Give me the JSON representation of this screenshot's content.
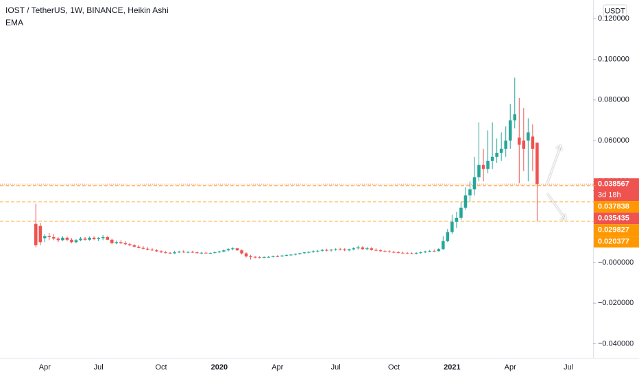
{
  "chart_data": {
    "type": "candlestick",
    "title": "IOST / TetherUS, 1W, BINANCE, Heikin Ashi",
    "indicator": "EMA",
    "currency": "USDT",
    "up_color": "#26a69a",
    "down_color": "#ef5350",
    "categories": [
      null,
      null,
      "Apr",
      null,
      null,
      null,
      null,
      null,
      null,
      null,
      null,
      null,
      null,
      null,
      "Jul",
      null,
      null,
      null,
      null,
      null,
      null,
      null,
      null,
      null,
      null,
      null,
      null,
      null,
      "Oct",
      null,
      null,
      null,
      null,
      null,
      null,
      null,
      null,
      null,
      null,
      null,
      null,
      "2020",
      null,
      null,
      null,
      null,
      null,
      null,
      null,
      null,
      null,
      null,
      null,
      null,
      "Apr",
      null,
      null,
      null,
      null,
      null,
      null,
      null,
      null,
      null,
      null,
      null,
      null,
      "Jul",
      null,
      null,
      null,
      null,
      null,
      null,
      null,
      null,
      null,
      null,
      null,
      null,
      "Oct",
      null,
      null,
      null,
      null,
      null,
      null,
      null,
      null,
      null,
      null,
      null,
      null,
      "2021",
      null,
      null,
      null,
      null,
      null,
      null,
      null,
      null,
      null,
      null,
      null,
      null,
      "Apr",
      null,
      null,
      null,
      null,
      null,
      null,
      null,
      null,
      null,
      null,
      null,
      null,
      "Jul",
      null,
      null,
      null,
      null,
      null
    ],
    "open": [
      0.019,
      0.018,
      0.012,
      0.013,
      0.0125,
      0.0118,
      0.011,
      0.0122,
      0.0112,
      0.01,
      0.011,
      0.0118,
      0.0112,
      0.0122,
      0.0115,
      0.012,
      0.0125,
      0.0112,
      0.0095,
      0.01,
      0.0095,
      0.009,
      0.0085,
      0.0078,
      0.0072,
      0.0068,
      0.0063,
      0.006,
      0.0055,
      0.005,
      0.0048,
      0.0045,
      0.005,
      0.0053,
      0.005,
      0.0052,
      0.005,
      0.0046,
      0.0048,
      0.0045,
      0.0047,
      0.005,
      0.0054,
      0.006,
      0.0066,
      0.007,
      0.006,
      0.0045,
      0.003,
      0.0028,
      0.0026,
      0.0025,
      0.0027,
      0.0028,
      0.0031,
      0.003,
      0.0034,
      0.0037,
      0.0039,
      0.0042,
      0.0046,
      0.005,
      0.0052,
      0.0056,
      0.0058,
      0.0062,
      0.006,
      0.0063,
      0.0066,
      0.0064,
      0.006,
      0.0065,
      0.007,
      0.0074,
      0.0066,
      0.007,
      0.0062,
      0.006,
      0.0056,
      0.0054,
      0.0052,
      0.005,
      0.0048,
      0.0046,
      0.0045,
      0.0044,
      0.0047,
      0.005,
      0.0054,
      0.0057,
      0.0056,
      0.0066,
      0.0105,
      0.015,
      0.02,
      0.022,
      0.027,
      0.033,
      0.036,
      0.042,
      0.048,
      0.046,
      0.05,
      0.052,
      0.054,
      0.056,
      0.06,
      0.07,
      0.0615,
      0.06,
      0.06,
      0.062,
      0.059,
      null,
      null,
      null,
      null,
      null,
      null,
      null,
      null,
      null,
      null,
      null,
      null
    ],
    "high": [
      0.029,
      0.0195,
      0.014,
      0.0145,
      0.014,
      0.0125,
      0.013,
      0.0128,
      0.012,
      0.0115,
      0.0125,
      0.0125,
      0.0128,
      0.013,
      0.0125,
      0.0135,
      0.013,
      0.0118,
      0.0108,
      0.011,
      0.0105,
      0.0098,
      0.009,
      0.0085,
      0.008,
      0.0075,
      0.007,
      0.0065,
      0.006,
      0.0056,
      0.0052,
      0.0058,
      0.0058,
      0.006,
      0.0055,
      0.0058,
      0.0054,
      0.0052,
      0.0053,
      0.005,
      0.0055,
      0.0058,
      0.0064,
      0.007,
      0.0075,
      0.0072,
      0.0064,
      0.005,
      0.0038,
      0.0032,
      0.003,
      0.003,
      0.0032,
      0.0034,
      0.0036,
      0.0038,
      0.004,
      0.0042,
      0.0045,
      0.0048,
      0.0052,
      0.0056,
      0.006,
      0.0062,
      0.0066,
      0.0068,
      0.0066,
      0.007,
      0.0072,
      0.007,
      0.0068,
      0.0075,
      0.0082,
      0.008,
      0.0078,
      0.0076,
      0.007,
      0.0066,
      0.0062,
      0.006,
      0.0058,
      0.0056,
      0.0054,
      0.0052,
      0.005,
      0.005,
      0.0054,
      0.0058,
      0.0062,
      0.0064,
      0.007,
      0.013,
      0.0165,
      0.0235,
      0.025,
      0.03,
      0.037,
      0.04,
      0.052,
      0.069,
      0.056,
      0.065,
      0.069,
      0.061,
      0.064,
      0.067,
      0.078,
      0.091,
      0.081,
      0.076,
      0.071,
      0.068,
      0.059,
      null,
      null,
      null,
      null,
      null,
      null,
      null,
      null,
      null,
      null,
      null,
      null
    ],
    "low": [
      0.0075,
      0.0085,
      0.01,
      0.011,
      0.011,
      0.01,
      0.0105,
      0.0105,
      0.0095,
      0.0095,
      0.0105,
      0.0108,
      0.0108,
      0.011,
      0.0105,
      0.011,
      0.011,
      0.009,
      0.009,
      0.009,
      0.0085,
      0.008,
      0.0075,
      0.007,
      0.0065,
      0.006,
      0.0058,
      0.0052,
      0.0048,
      0.0045,
      0.0042,
      0.0043,
      0.0046,
      0.0048,
      0.0046,
      0.0048,
      0.0044,
      0.0042,
      0.0044,
      0.0042,
      0.0044,
      0.0047,
      0.005,
      0.0055,
      0.006,
      0.0058,
      0.004,
      0.0025,
      0.0015,
      0.002,
      0.002,
      0.0021,
      0.0023,
      0.0025,
      0.0027,
      0.0028,
      0.003,
      0.0032,
      0.0035,
      0.0038,
      0.0042,
      0.0045,
      0.0048,
      0.005,
      0.0053,
      0.0055,
      0.0054,
      0.0058,
      0.006,
      0.0056,
      0.0055,
      0.006,
      0.0064,
      0.0062,
      0.006,
      0.0058,
      0.0056,
      0.0052,
      0.005,
      0.0049,
      0.0047,
      0.0045,
      0.0044,
      0.0042,
      0.0041,
      0.004,
      0.0043,
      0.0046,
      0.005,
      0.0052,
      0.0054,
      0.0062,
      0.01,
      0.014,
      0.017,
      0.021,
      0.026,
      0.03,
      0.033,
      0.04,
      0.04,
      0.044,
      0.046,
      0.049,
      0.05,
      0.052,
      0.056,
      0.066,
      0.039,
      0.045,
      0.04,
      0.045,
      0.0203,
      null,
      null,
      null,
      null,
      null,
      null,
      null,
      null,
      null,
      null,
      null,
      null
    ],
    "close": [
      0.0085,
      0.01,
      0.013,
      0.0125,
      0.0118,
      0.011,
      0.0122,
      0.0112,
      0.01,
      0.011,
      0.0118,
      0.0112,
      0.0122,
      0.0115,
      0.012,
      0.0125,
      0.0112,
      0.0095,
      0.01,
      0.0095,
      0.009,
      0.0085,
      0.0078,
      0.0072,
      0.0068,
      0.0063,
      0.006,
      0.0055,
      0.005,
      0.0048,
      0.0045,
      0.005,
      0.0053,
      0.005,
      0.0052,
      0.005,
      0.0046,
      0.0048,
      0.0045,
      0.0047,
      0.005,
      0.0054,
      0.006,
      0.0066,
      0.007,
      0.006,
      0.0045,
      0.003,
      0.0028,
      0.0026,
      0.0025,
      0.0027,
      0.0028,
      0.0031,
      0.003,
      0.0034,
      0.0037,
      0.0039,
      0.0042,
      0.0046,
      0.005,
      0.0052,
      0.0056,
      0.0058,
      0.0062,
      0.006,
      0.0063,
      0.0066,
      0.0064,
      0.006,
      0.0065,
      0.007,
      0.0074,
      0.0066,
      0.007,
      0.0062,
      0.006,
      0.0056,
      0.0054,
      0.0052,
      0.005,
      0.0048,
      0.0046,
      0.0045,
      0.0044,
      0.0047,
      0.005,
      0.0054,
      0.0057,
      0.0056,
      0.0066,
      0.0105,
      0.015,
      0.02,
      0.022,
      0.027,
      0.033,
      0.036,
      0.042,
      0.048,
      0.046,
      0.05,
      0.052,
      0.054,
      0.056,
      0.06,
      0.07,
      0.073,
      0.058,
      0.056,
      0.064,
      0.056,
      0.038567,
      null,
      null,
      null,
      null,
      null,
      null,
      null,
      null,
      null,
      null,
      null,
      null
    ],
    "ylim": [
      -0.0469,
      0.1292
    ],
    "yticks": [
      {
        "value": 0.12,
        "label": "0.120000"
      },
      {
        "value": 0.1,
        "label": "0.100000"
      },
      {
        "value": 0.08,
        "label": "0.080000"
      },
      {
        "value": 0.06,
        "label": "0.060000"
      },
      {
        "value": 0.04,
        "label": "0.040000"
      },
      {
        "value": 0,
        "label": "−0.000000"
      },
      {
        "value": -0.02,
        "label": "−0.020000"
      },
      {
        "value": -0.04,
        "label": "−0.040000"
      }
    ],
    "price_labels": [
      {
        "value": 0.038567,
        "label": "0.038567",
        "color": "#ef5350",
        "line": "dotted",
        "countdown": "3d 18h"
      },
      {
        "value": 0.037838,
        "label": "0.037838",
        "color": "#ff9800",
        "line": "dashed"
      },
      {
        "value": 0.035435,
        "label": "0.035435",
        "color": "#ef5350"
      },
      {
        "value": 0.029827,
        "label": "0.029827",
        "color": "#ff9800",
        "line": "dashed"
      },
      {
        "value": 0.020377,
        "label": "0.020377",
        "color": "#ff9800",
        "line": "dashed"
      }
    ]
  }
}
